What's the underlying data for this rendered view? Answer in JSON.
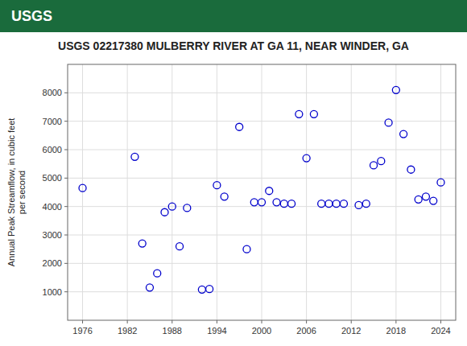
{
  "chart_data": {
    "type": "scatter",
    "title": "USGS 02217380 MULBERRY RIVER AT GA 11, NEAR WINDER, GA",
    "annotations": [
      "USGS"
    ],
    "y_label": "Annual Peak Streamflow, in cubic feet\nper second",
    "x": [
      1976,
      1983,
      1984,
      1985,
      1986,
      1987,
      1988,
      1989,
      1990,
      1992,
      1993,
      1994,
      1995,
      1997,
      1998,
      1999,
      2000,
      2001,
      2002,
      2003,
      2004,
      2005,
      2006,
      2007,
      2008,
      2009,
      2010,
      2011,
      2013,
      2014,
      2015,
      2016,
      2017,
      2018,
      2019,
      2020,
      2021,
      2022,
      2023,
      2024
    ],
    "values": [
      4650,
      5750,
      2700,
      1150,
      1650,
      3800,
      4000,
      2600,
      3950,
      1080,
      1100,
      4750,
      4350,
      6800,
      2500,
      4150,
      4150,
      4550,
      4150,
      4100,
      4100,
      7250,
      5700,
      7250,
      4100,
      4100,
      4100,
      4100,
      4050,
      4100,
      5450,
      5600,
      6950,
      8100,
      6550,
      5300,
      4250,
      4350,
      4200,
      4850
    ],
    "color": "#0000CC",
    "marker": "circle",
    "xlim": [
      1974,
      2026
    ],
    "ylim": [
      0,
      9000
    ],
    "xticks": [
      1976,
      1982,
      1988,
      1994,
      2000,
      2006,
      2012,
      2018,
      2024
    ],
    "yticks": [
      1000,
      2000,
      3000,
      4000,
      5000,
      6000,
      7000,
      8000
    ],
    "grid": true
  }
}
